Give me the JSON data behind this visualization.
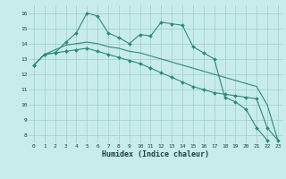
{
  "x": [
    0,
    1,
    2,
    3,
    4,
    5,
    6,
    7,
    8,
    9,
    10,
    11,
    12,
    13,
    14,
    15,
    16,
    17,
    18,
    19,
    20,
    21,
    22,
    23
  ],
  "line1": [
    12.6,
    13.3,
    13.4,
    14.1,
    14.7,
    16.0,
    15.8,
    14.7,
    14.4,
    14.0,
    14.6,
    14.5,
    15.4,
    15.3,
    15.2,
    13.8,
    13.4,
    13.0,
    10.5,
    10.2,
    9.7,
    8.5,
    7.7,
    null
  ],
  "line2": [
    12.6,
    13.3,
    13.4,
    13.5,
    13.6,
    13.7,
    13.5,
    13.3,
    13.1,
    12.9,
    12.7,
    12.4,
    12.1,
    11.8,
    11.5,
    11.2,
    11.0,
    10.8,
    10.7,
    10.6,
    10.5,
    10.4,
    8.5,
    7.7
  ],
  "line3": [
    12.6,
    13.3,
    13.6,
    13.9,
    14.0,
    14.1,
    14.0,
    13.8,
    13.7,
    13.5,
    13.4,
    13.2,
    13.0,
    12.8,
    12.6,
    12.4,
    12.2,
    12.0,
    11.8,
    11.6,
    11.4,
    11.2,
    10.0,
    7.7
  ],
  "line_color": "#2e8b77",
  "bg_color": "#c8ecec",
  "grid_color": "#a0cccc",
  "xlabel": "Humidex (Indice chaleur)",
  "ylim": [
    7.5,
    16.5
  ],
  "xlim": [
    -0.5,
    23.5
  ],
  "yticks": [
    8,
    9,
    10,
    11,
    12,
    13,
    14,
    15,
    16
  ],
  "xticks": [
    0,
    1,
    2,
    3,
    4,
    5,
    6,
    7,
    8,
    9,
    10,
    11,
    12,
    13,
    14,
    15,
    16,
    17,
    18,
    19,
    20,
    21,
    22,
    23
  ],
  "marker": "D",
  "marker_size": 2.0,
  "line_width": 0.8
}
